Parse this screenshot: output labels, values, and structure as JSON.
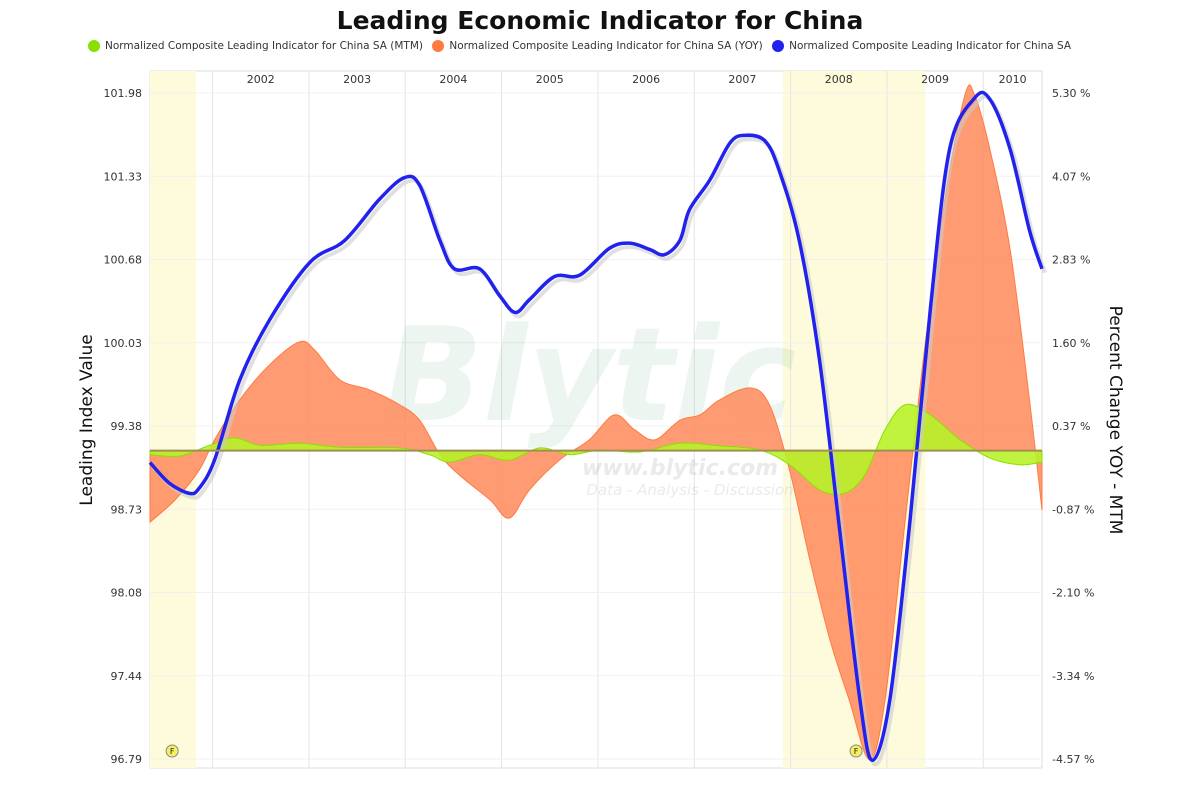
{
  "title": "Leading Economic Indicator for China",
  "legend": [
    {
      "label": "Normalized Composite Leading Indicator for China SA (MTM)",
      "color": "#88e000"
    },
    {
      "label": "Normalized Composite Leading Indicator for China SA (YOY)",
      "color": "#ff7a40"
    },
    {
      "label": "Normalized Composite Leading Indicator for China SA",
      "color": "#2222ee"
    }
  ],
  "watermark": {
    "brand": "Blytic",
    "url": "www.blytic.com",
    "tagline": "Data - Analysis - Discussion"
  },
  "chart_data": {
    "type": "line",
    "title": "Leading Economic Indicator for China",
    "ylabel": "Leading Index Value",
    "y2label": "Percent Change YOY - MTM",
    "xlim": [
      2001.35,
      2010.61
    ],
    "ylim": [
      96.79,
      101.98
    ],
    "y2lim": [
      -4.57,
      5.3
    ],
    "x_tick_labels": [
      "2002",
      "2003",
      "2004",
      "2005",
      "2006",
      "2007",
      "2008",
      "2009",
      "2010"
    ],
    "y_ticks": [
      "101.98",
      "101.33",
      "100.68",
      "100.03",
      "99.38",
      "98.73",
      "98.08",
      "97.44",
      "96.79"
    ],
    "y2_ticks": [
      "5.30 %",
      "4.07 %",
      "2.83 %",
      "1.60 %",
      "0.37 %",
      "-0.87 %",
      "-2.10 %",
      "-3.34 %",
      "-4.57 %"
    ],
    "shaded_periods": [
      [
        2001.35,
        2001.83
      ],
      [
        2007.92,
        2009.4
      ]
    ],
    "event_markers": [
      {
        "x": 2001.58,
        "label": "F"
      },
      {
        "x": 2008.68,
        "label": "F"
      }
    ],
    "series": [
      {
        "name": "Normalized Composite Leading Indicator for China SA (MTM)",
        "axis": "right",
        "kind": "area",
        "color": "#88e000",
        "x": [
          2001.35,
          2001.66,
          2001.97,
          2002.23,
          2002.49,
          2002.9,
          2003.32,
          2003.94,
          2004.25,
          2004.46,
          2004.77,
          2005.08,
          2005.4,
          2005.71,
          2006.02,
          2006.43,
          2006.85,
          2007.26,
          2007.68,
          2007.99,
          2008.3,
          2008.56,
          2008.77,
          2008.98,
          2009.19,
          2009.45,
          2009.76,
          2010.07,
          2010.38,
          2010.61
        ],
        "y": [
          -0.06,
          -0.08,
          0.08,
          0.19,
          0.08,
          0.11,
          0.05,
          0.04,
          -0.06,
          -0.17,
          -0.06,
          -0.14,
          0.04,
          -0.06,
          0.01,
          -0.02,
          0.11,
          0.07,
          0.01,
          -0.21,
          -0.58,
          -0.63,
          -0.36,
          0.31,
          0.68,
          0.53,
          0.16,
          -0.11,
          -0.21,
          -0.17
        ]
      },
      {
        "name": "Normalized Composite Leading Indicator for China SA (YOY)",
        "axis": "right",
        "kind": "area",
        "color": "#ff7a40",
        "x": [
          2001.35,
          2001.61,
          2001.86,
          2002.02,
          2002.28,
          2002.59,
          2002.9,
          2003.06,
          2003.32,
          2003.63,
          2003.94,
          2004.15,
          2004.36,
          2004.56,
          2004.88,
          2005.08,
          2005.29,
          2005.6,
          2005.91,
          2006.17,
          2006.38,
          2006.59,
          2006.85,
          2007.06,
          2007.26,
          2007.58,
          2007.78,
          2007.99,
          2008.2,
          2008.41,
          2008.61,
          2008.82,
          2008.98,
          2009.19,
          2009.39,
          2009.6,
          2009.81,
          2009.91,
          2010.07,
          2010.28,
          2010.48,
          2010.61
        ],
        "y": [
          -1.06,
          -0.73,
          -0.29,
          0.16,
          0.75,
          1.27,
          1.61,
          1.49,
          1.05,
          0.9,
          0.68,
          0.45,
          -0.06,
          -0.36,
          -0.73,
          -1.0,
          -0.58,
          -0.14,
          0.16,
          0.53,
          0.31,
          0.16,
          0.45,
          0.53,
          0.75,
          0.93,
          0.68,
          -0.29,
          -1.62,
          -2.81,
          -3.7,
          -4.58,
          -3.7,
          -1.03,
          1.49,
          3.71,
          5.27,
          5.27,
          4.46,
          2.97,
          0.75,
          -0.88
        ]
      },
      {
        "name": "Normalized Composite Leading Indicator for China SA",
        "axis": "left",
        "kind": "line",
        "color": "#2222ee",
        "x": [
          2001.35,
          2001.55,
          2001.76,
          2001.86,
          2002.02,
          2002.28,
          2002.59,
          2003.01,
          2003.37,
          2003.73,
          2003.99,
          2004.15,
          2004.36,
          2004.51,
          2004.77,
          2004.98,
          2005.14,
          2005.29,
          2005.55,
          2005.81,
          2006.12,
          2006.33,
          2006.54,
          2006.69,
          2006.85,
          2006.95,
          2007.16,
          2007.37,
          2007.52,
          2007.73,
          2007.88,
          2008.09,
          2008.3,
          2008.51,
          2008.72,
          2008.85,
          2009.03,
          2009.24,
          2009.45,
          2009.65,
          2009.91,
          2010.07,
          2010.28,
          2010.48,
          2010.61
        ],
        "y": [
          99.1,
          98.94,
          98.86,
          98.9,
          99.12,
          99.74,
          100.21,
          100.66,
          100.83,
          101.15,
          101.32,
          101.26,
          100.83,
          100.61,
          100.61,
          100.4,
          100.27,
          100.37,
          100.55,
          100.56,
          100.77,
          100.81,
          100.76,
          100.72,
          100.83,
          101.07,
          101.3,
          101.59,
          101.65,
          101.61,
          101.38,
          100.83,
          99.9,
          98.57,
          97.25,
          96.78,
          97.25,
          98.65,
          100.29,
          101.54,
          101.94,
          101.93,
          101.54,
          100.91,
          100.61
        ]
      }
    ]
  }
}
